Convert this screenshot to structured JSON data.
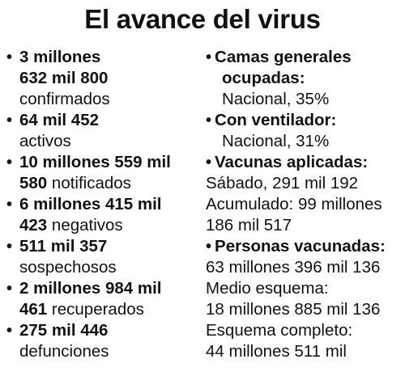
{
  "title": "El avance del virus",
  "bullet_glyph": "•",
  "left": {
    "confirmados": {
      "line1": "3 millones",
      "line2_bold": "632 mil 800",
      "line3": "confirmados"
    },
    "activos": {
      "line1": "64 mil 452",
      "line2": "activos"
    },
    "notificados": {
      "line1": "10 millones 559 mil",
      "line2_bold": "580",
      "line2_rest": "notificados"
    },
    "negativos": {
      "line1": "6 millones 415 mil",
      "line2_bold": "423",
      "line2_rest": "negativos"
    },
    "sospechosos": {
      "line1": "511 mil 357",
      "line2": "sospechosos"
    },
    "recuperados": {
      "line1": "2 millones 984 mil",
      "line2_bold": "461",
      "line2_rest": "recuperados"
    },
    "defunciones": {
      "line1": "275 mil 446",
      "line2": "defunciones"
    }
  },
  "right": {
    "camas": {
      "head1": "Camas generales",
      "head2": "ocupadas:",
      "value": "Nacional, 35%"
    },
    "ventilador": {
      "head": "Con ventilador:",
      "value": "Nacional, 31%"
    },
    "vacunas": {
      "head": "Vacunas aplicadas:",
      "line1": "Sábado, 291 mil 192",
      "line2": "Acumulado: 99 millones",
      "line3": "186 mil 517"
    },
    "personas": {
      "head": "Personas vacunadas:",
      "line1": "63 millones 396 mil 136",
      "line2": "Medio esquema:",
      "line3": "18 millones 885 mil 136",
      "line4": "Esquema completo:",
      "line5": "44 millones 511 mil"
    }
  }
}
